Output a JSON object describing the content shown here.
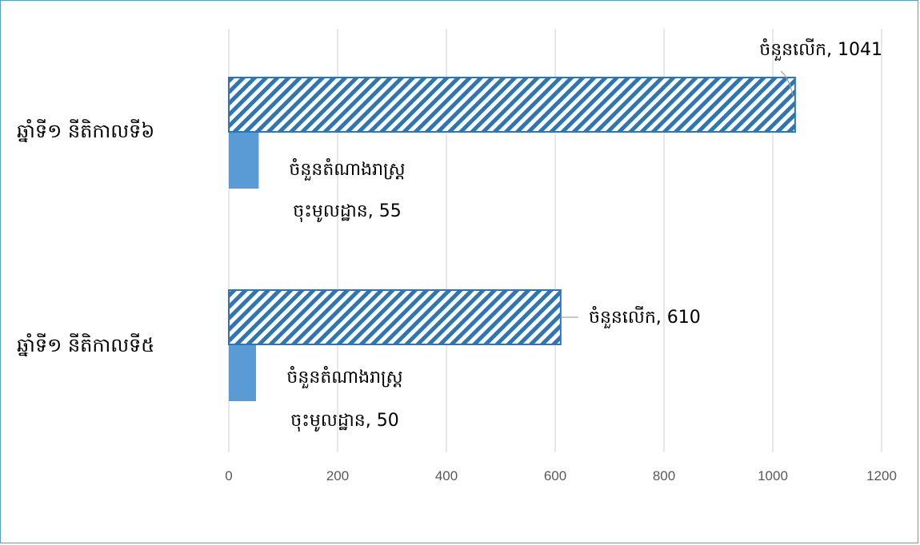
{
  "chart_data": {
    "type": "bar",
    "orientation": "horizontal",
    "categories": [
      "ឆ្នាំទី១ នីតិកាលទី៦",
      "ឆ្នាំទី១ នីតិកាលទី៥"
    ],
    "series": [
      {
        "name": "ចំនួនលើក",
        "values": [
          1041,
          610
        ],
        "color": "#2e75b6",
        "pattern": "diagonal-stripes"
      },
      {
        "name": "ចំនួនតំណាងរាស្ត្រចុះមូលដ្ឋាន",
        "values": [
          55,
          50
        ],
        "color": "#5b9bd5",
        "pattern": "solid"
      }
    ],
    "data_labels": [
      [
        "ចំនួនលើក, 1041",
        "ចំនួនលើក, 610"
      ],
      [
        [
          "ចំនួនតំណាងរាស្ត្រ",
          "ចុះមូលដ្ឋាន, 55"
        ],
        [
          "ចំនួនតំណាងរាស្ត្រ",
          "ចុះមូលដ្ឋាន, 50"
        ]
      ]
    ],
    "x_ticks": [
      "0",
      "200",
      "400",
      "600",
      "800",
      "1000",
      "1200"
    ],
    "xlim": [
      0,
      1200
    ],
    "grid": true,
    "legend": "none",
    "title": "",
    "xlabel": "",
    "ylabel": ""
  }
}
